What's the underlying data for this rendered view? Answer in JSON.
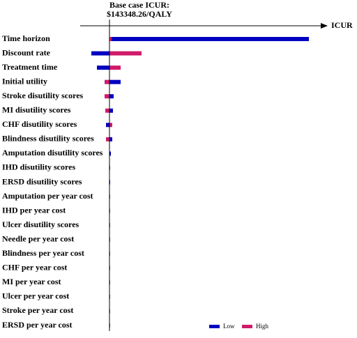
{
  "chart_data": {
    "type": "tornado",
    "annotation": [
      "Base case ICUR:",
      "$143348.26/QALY"
    ],
    "base": 143348.26,
    "x_label": "ICUR",
    "xlim": [
      101348.26,
      456348.26
    ],
    "legend": "bottom-right",
    "categories": [
      "Time horizon",
      "Discount rate",
      "Treatment time",
      "Initial utility",
      "Stroke disutility scores",
      "MI disutility scores",
      "CHF disutility scores",
      "Blindness disutility scores",
      "Amputation disutility scores",
      "IHD disutility scores",
      "ERSD disutility scores",
      "Amputation per year cost",
      "IHD per year cost",
      "Ulcer disutility scores",
      "Needle per year cost",
      "Blindness per year cost",
      "CHF per year cost",
      "MI per year cost",
      "Ulcer per year cost",
      "Stroke per year cost",
      "ERSD per year cost"
    ],
    "series": [
      {
        "name": "Low",
        "color": "#0000c0",
        "values": [
          429348.26,
          117348.26,
          125348.26,
          159348.26,
          149348.26,
          148348.26,
          138348.26,
          147348.26,
          145348.26,
          143648.26,
          144348.26,
          143748.26,
          143748.26,
          143748.26,
          143748.26,
          143748.26,
          143748.26,
          143748.26,
          143748.26,
          143748.26,
          143748.26
        ]
      },
      {
        "name": "High",
        "color": "#d01a6a",
        "values": [
          146348.26,
          189348.26,
          159348.26,
          136348.26,
          136348.26,
          137348.26,
          147348.26,
          138348.26,
          142848.26,
          144148.26,
          142948.26,
          142948.26,
          142948.26,
          142948.26,
          142948.26,
          142948.26,
          142948.26,
          142948.26,
          142948.26,
          142948.26,
          142948.26
        ]
      }
    ]
  }
}
